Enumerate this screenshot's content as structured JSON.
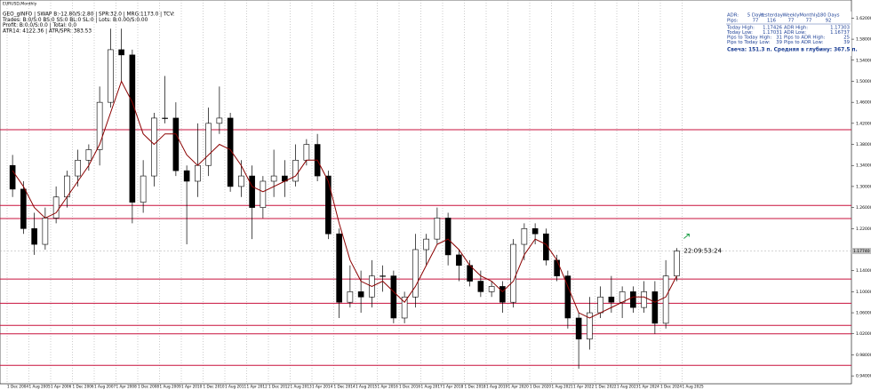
{
  "header_lines": [
    "EURUSD,Monthly",
    "GEO_gINFO | SWAP B:-12.80/S:2.80 | SPR:32.0 | MRG:1173.0 | TCV:",
    "Trades: B:0/S:0 BS:0 SS:0 BL:0 SL:0 | Lots: B:0.00/S:0.00",
    "Profit: B:0.0/S:0.0 | Total: 0.0",
    "ATR14: 4122.36 | ATR/SPR: 383.53"
  ],
  "info_panel": {
    "header": [
      "ADR:",
      "5 Days",
      "Yesterday",
      "Weekly",
      "Monthly",
      "180 Days"
    ],
    "pips": [
      "Pips:",
      "77",
      "116",
      "77",
      "77",
      "92"
    ],
    "rows": [
      [
        "Today High:",
        "1.17426",
        "ADR High:",
        "1.17303"
      ],
      [
        "Today Low:",
        "1.17031",
        "ADR Low:",
        "1.16737"
      ],
      [
        "Pips to Today High:",
        "31",
        "Pips to ADR High:",
        "25"
      ],
      [
        "Pips to Today Low:",
        "39",
        "Pips to ADR Low:",
        "39"
      ]
    ],
    "footer": "Свеча: 151.3 п. Средняя в глубину: 367.5 п."
  },
  "chart_data": {
    "type": "candlestick",
    "ylim": [
      0.925,
      1.646
    ],
    "yticks": [
      {
        "value": 0.94,
        "label": "0.94000"
      },
      {
        "value": 0.98,
        "label": "0.98000"
      },
      {
        "value": 1.02,
        "label": "1.02000"
      },
      {
        "value": 1.06,
        "label": "1.06000"
      },
      {
        "value": 1.1,
        "label": "1.10000"
      },
      {
        "value": 1.14,
        "label": "1.14000"
      },
      {
        "value": 1.18,
        "label": "1.18000"
      },
      {
        "value": 1.22,
        "label": "1.22000"
      },
      {
        "value": 1.26,
        "label": "1.26000"
      },
      {
        "value": 1.3,
        "label": "1.30000"
      },
      {
        "value": 1.34,
        "label": "1.34000"
      },
      {
        "value": 1.38,
        "label": "1.38000"
      },
      {
        "value": 1.42,
        "label": "1.42000"
      },
      {
        "value": 1.46,
        "label": "1.46000"
      },
      {
        "value": 1.5,
        "label": "1.50000"
      },
      {
        "value": 1.54,
        "label": "1.54000"
      },
      {
        "value": 1.58,
        "label": "1.58000"
      },
      {
        "value": 1.62,
        "label": "1.62000"
      }
    ],
    "x_labels": [
      "1 Dec 2004",
      "1 Aug 2005",
      "1 Apr 2006",
      "1 Dec 2006",
      "1 Aug 2007",
      "1 Apr 2008",
      "1 Dec 2008",
      "1 Aug 2009",
      "1 Apr 2010",
      "1 Dec 2010",
      "1 Aug 2011",
      "1 Apr 2012",
      "1 Dec 2012",
      "1 Aug 2013",
      "1 Apr 2014",
      "1 Dec 2014",
      "1 Aug 2015",
      "1 Apr 2016",
      "1 Dec 2016",
      "1 Aug 2017",
      "1 Apr 2018",
      "1 Dec 2018",
      "1 Aug 2019",
      "1 Apr 2020",
      "1 Dec 2020",
      "1 Aug 2021",
      "1 Apr 2022",
      "1 Dec 2022",
      "1 Aug 2023",
      "1 Apr 2024",
      "1 Dec 2024",
      "1 Aug 2025"
    ],
    "open": [
      1.34,
      1.295,
      1.22,
      1.19,
      1.24,
      1.28,
      1.32,
      1.35,
      1.37,
      1.46,
      1.56,
      1.55,
      1.27,
      1.32,
      1.43,
      1.43,
      1.33,
      1.31,
      1.34,
      1.42,
      1.43,
      1.3,
      1.32,
      1.26,
      1.31,
      1.32,
      1.31,
      1.35,
      1.38,
      1.32,
      1.21,
      1.08,
      1.1,
      1.09,
      1.13,
      1.13,
      1.05,
      1.09,
      1.18,
      1.2,
      1.24,
      1.17,
      1.15,
      1.12,
      1.1,
      1.11,
      1.08,
      1.19,
      1.22,
      1.21,
      1.16,
      1.13,
      1.05,
      1.01,
      1.06,
      1.09,
      1.08,
      1.1,
      1.07,
      1.1,
      1.04,
      1.13
    ],
    "high": [
      1.36,
      1.31,
      1.25,
      1.26,
      1.3,
      1.33,
      1.37,
      1.38,
      1.49,
      1.6,
      1.6,
      1.56,
      1.35,
      1.44,
      1.51,
      1.46,
      1.34,
      1.42,
      1.45,
      1.49,
      1.44,
      1.35,
      1.34,
      1.32,
      1.37,
      1.35,
      1.38,
      1.39,
      1.4,
      1.33,
      1.22,
      1.15,
      1.14,
      1.16,
      1.15,
      1.14,
      1.1,
      1.21,
      1.21,
      1.26,
      1.25,
      1.18,
      1.16,
      1.14,
      1.12,
      1.12,
      1.2,
      1.23,
      1.23,
      1.22,
      1.17,
      1.14,
      1.06,
      1.09,
      1.11,
      1.13,
      1.11,
      1.11,
      1.12,
      1.12,
      1.16,
      1.183
    ],
    "low": [
      1.28,
      1.21,
      1.17,
      1.18,
      1.23,
      1.26,
      1.3,
      1.33,
      1.34,
      1.45,
      1.5,
      1.23,
      1.25,
      1.3,
      1.42,
      1.32,
      1.19,
      1.28,
      1.32,
      1.4,
      1.29,
      1.28,
      1.2,
      1.24,
      1.28,
      1.28,
      1.3,
      1.34,
      1.31,
      1.2,
      1.05,
      1.07,
      1.06,
      1.07,
      1.1,
      1.04,
      1.04,
      1.07,
      1.15,
      1.19,
      1.15,
      1.12,
      1.11,
      1.09,
      1.09,
      1.06,
      1.07,
      1.16,
      1.19,
      1.15,
      1.12,
      1.03,
      0.9535,
      0.99,
      1.05,
      1.06,
      1.05,
      1.06,
      1.06,
      1.02,
      1.03,
      1.12
    ],
    "close": [
      1.295,
      1.22,
      1.19,
      1.24,
      1.28,
      1.32,
      1.35,
      1.37,
      1.46,
      1.56,
      1.55,
      1.27,
      1.32,
      1.43,
      1.43,
      1.33,
      1.31,
      1.34,
      1.42,
      1.43,
      1.3,
      1.32,
      1.26,
      1.31,
      1.32,
      1.31,
      1.35,
      1.38,
      1.32,
      1.21,
      1.08,
      1.1,
      1.09,
      1.13,
      1.13,
      1.05,
      1.09,
      1.18,
      1.2,
      1.24,
      1.17,
      1.15,
      1.12,
      1.1,
      1.11,
      1.08,
      1.19,
      1.22,
      1.21,
      1.16,
      1.13,
      1.05,
      1.01,
      1.06,
      1.09,
      1.08,
      1.1,
      1.07,
      1.1,
      1.04,
      1.13,
      1.1774
    ],
    "ma": {
      "color": "#8b0000",
      "values": [
        1.33,
        1.3,
        1.26,
        1.24,
        1.25,
        1.28,
        1.31,
        1.34,
        1.38,
        1.44,
        1.5,
        1.46,
        1.4,
        1.38,
        1.4,
        1.4,
        1.36,
        1.34,
        1.36,
        1.38,
        1.37,
        1.34,
        1.3,
        1.29,
        1.3,
        1.31,
        1.32,
        1.35,
        1.35,
        1.31,
        1.23,
        1.16,
        1.12,
        1.11,
        1.12,
        1.1,
        1.08,
        1.11,
        1.15,
        1.19,
        1.2,
        1.18,
        1.15,
        1.13,
        1.12,
        1.1,
        1.12,
        1.17,
        1.2,
        1.19,
        1.16,
        1.11,
        1.06,
        1.05,
        1.06,
        1.07,
        1.08,
        1.09,
        1.09,
        1.08,
        1.09,
        1.13
      ]
    },
    "levels": {
      "color": "#c8103c",
      "values": [
        1.408,
        1.264,
        1.239,
        1.124,
        1.078,
        1.036,
        1.02,
        0.96
      ]
    },
    "current_price": {
      "value": 1.1774,
      "label": "1.17740"
    },
    "timer": "22:09:53:24",
    "timer_color": "#22a04a"
  }
}
